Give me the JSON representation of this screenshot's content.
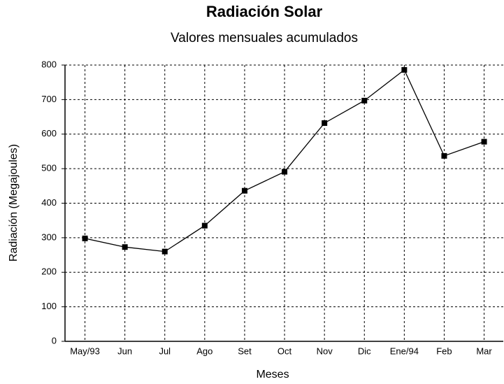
{
  "chart_data": {
    "type": "line",
    "title": "Radiación Solar",
    "subtitle": "Valores mensuales acumulados",
    "x_label": "Meses",
    "y_label": "Radiación (Megajoules)",
    "categories": [
      "May/93",
      "Jun",
      "Jul",
      "Ago",
      "Set",
      "Oct",
      "Nov",
      "Dic",
      "Ene/94",
      "Feb",
      "Mar"
    ],
    "values": [
      298,
      273,
      260,
      335,
      436,
      491,
      632,
      697,
      786,
      537,
      578
    ],
    "color": "#000000",
    "ylim": [
      0,
      800
    ],
    "yticks": [
      0,
      100,
      200,
      300,
      400,
      500,
      600,
      700,
      800
    ],
    "grid": true
  }
}
